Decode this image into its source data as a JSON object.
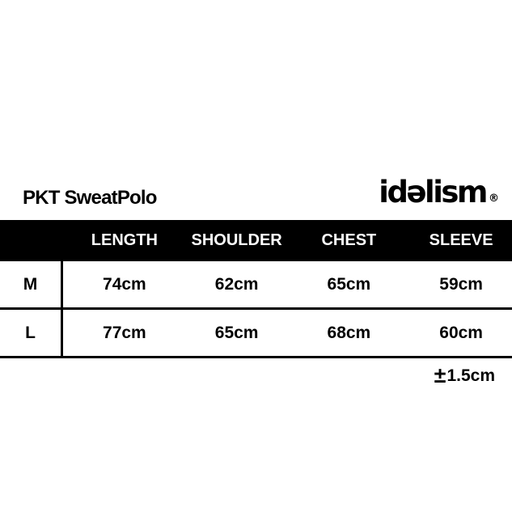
{
  "header": {
    "product_title": "PKT SweatPolo",
    "brand_logo_text": "idəlism",
    "brand_registered_mark": "®"
  },
  "table": {
    "column_headers": [
      "LENGTH",
      "SHOULDER",
      "CHEST",
      "SLEEVE"
    ],
    "rows": [
      {
        "size_label": "M",
        "length": "74cm",
        "shoulder": "62cm",
        "chest": "65cm",
        "sleeve": "59cm"
      },
      {
        "size_label": "L",
        "length": "77cm",
        "shoulder": "65cm",
        "chest": "68cm",
        "sleeve": "60cm"
      }
    ]
  },
  "footer": {
    "tolerance_symbol": "±",
    "tolerance_value": "1.5cm"
  },
  "colors": {
    "page_background": "#ffffff",
    "header_bar_background": "#000000",
    "header_bar_text": "#ffffff",
    "body_text": "#000000",
    "rule_lines": "#000000"
  },
  "chart_data": {
    "type": "table",
    "title": "PKT SweatPolo",
    "brand": "idəlism®",
    "columns": [
      "",
      "LENGTH",
      "SHOULDER",
      "CHEST",
      "SLEEVE"
    ],
    "rows": [
      [
        "M",
        "74cm",
        "62cm",
        "65cm",
        "59cm"
      ],
      [
        "L",
        "77cm",
        "65cm",
        "68cm",
        "60cm"
      ]
    ],
    "values_cm": {
      "M": {
        "length": 74,
        "shoulder": 62,
        "chest": 65,
        "sleeve": 59
      },
      "L": {
        "length": 77,
        "shoulder": 65,
        "chest": 68,
        "sleeve": 60
      }
    },
    "tolerance": "±1.5cm",
    "layout_hints": {
      "header_row_style": "white bold text on solid black full-width bar",
      "size_column_separator": "vertical black rule below header only",
      "row_separators": "full-width horizontal black rules"
    }
  }
}
